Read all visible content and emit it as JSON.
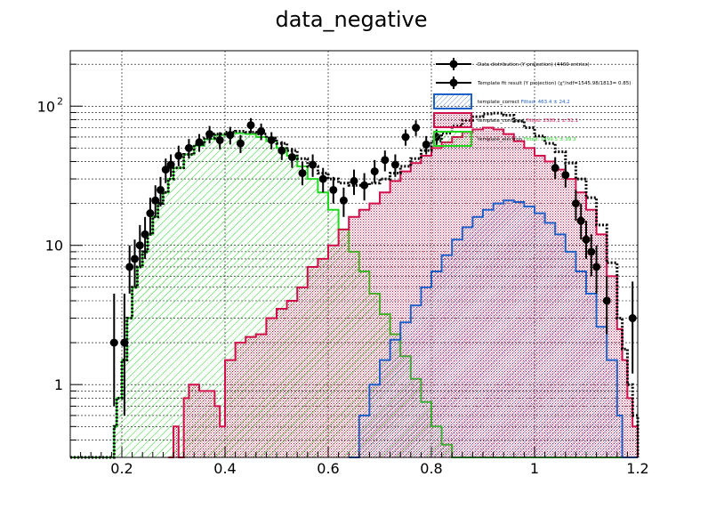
{
  "chart_data": {
    "type": "histogram",
    "title": "data_negative",
    "xlabel": "",
    "ylabel": "",
    "xlim": [
      0.1,
      1.2
    ],
    "ylim": [
      0.3,
      250
    ],
    "y_scale": "log",
    "grid": true,
    "legend_position": "top-right",
    "x_ticks": [
      "0.2",
      "0.4",
      "0.6",
      "0.8",
      "1",
      "1.2"
    ],
    "y_ticks": [
      {
        "value": 1,
        "label": "1"
      },
      {
        "value": 10,
        "label": "10"
      },
      {
        "value": 100,
        "label": "10",
        "exp": "2"
      }
    ],
    "bin_edges_range": [
      0.1,
      1.2
    ],
    "bin_width": 0.01,
    "legend": [
      {
        "label": "Data distribution (Y projection) (4469 entries)",
        "style": "marker",
        "color": "#000000"
      },
      {
        "label": "Template fit result (Y projection) (χ²/ndf=1545.98/1813= 0.85)",
        "style": "marker",
        "color": "#000000"
      },
      {
        "label": "template_correct",
        "fitted": "Fitted: 463.4 ± 24.2",
        "style": "hatch",
        "color": "#1f5fc8",
        "fitted_color": "#1f5fc8"
      },
      {
        "label": "template_confused",
        "fitted": "Fitted: 2505.1 ± 51.1",
        "style": "hatch",
        "color": "#d0104a",
        "fitted_color": "#d0104a"
      },
      {
        "label": "template_electron",
        "fitted": "Fitted: 1499.5 ± 39.3",
        "style": "hatch",
        "color": "#20d820",
        "fitted_color": "#20d820"
      }
    ],
    "series": [
      {
        "name": "template_electron",
        "color": "#20d820",
        "points": [
          [
            0.1,
            0.3
          ],
          [
            0.18,
            0.3
          ],
          [
            0.185,
            0.5
          ],
          [
            0.19,
            0.8
          ],
          [
            0.2,
            1.5
          ],
          [
            0.21,
            3
          ],
          [
            0.22,
            5
          ],
          [
            0.23,
            7
          ],
          [
            0.24,
            9
          ],
          [
            0.25,
            12
          ],
          [
            0.26,
            16
          ],
          [
            0.27,
            20
          ],
          [
            0.28,
            24
          ],
          [
            0.29,
            30
          ],
          [
            0.3,
            36
          ],
          [
            0.32,
            45
          ],
          [
            0.34,
            52
          ],
          [
            0.36,
            58
          ],
          [
            0.38,
            62
          ],
          [
            0.4,
            64
          ],
          [
            0.42,
            64
          ],
          [
            0.44,
            63
          ],
          [
            0.46,
            60
          ],
          [
            0.48,
            56
          ],
          [
            0.5,
            50
          ],
          [
            0.52,
            44
          ],
          [
            0.54,
            37
          ],
          [
            0.56,
            30
          ],
          [
            0.58,
            24
          ],
          [
            0.6,
            18
          ],
          [
            0.62,
            13
          ],
          [
            0.64,
            9
          ],
          [
            0.66,
            6.5
          ],
          [
            0.68,
            4.5
          ],
          [
            0.7,
            3.2
          ],
          [
            0.72,
            2.3
          ],
          [
            0.74,
            1.6
          ],
          [
            0.76,
            1.1
          ],
          [
            0.78,
            0.75
          ],
          [
            0.8,
            0.5
          ],
          [
            0.82,
            0.37
          ],
          [
            0.84,
            0.3
          ],
          [
            1.2,
            0.3
          ]
        ]
      },
      {
        "name": "template_confused",
        "color": "#d0104a",
        "points": [
          [
            0.29,
            0.3
          ],
          [
            0.3,
            0.5
          ],
          [
            0.31,
            0.3
          ],
          [
            0.32,
            0.8
          ],
          [
            0.33,
            1.0
          ],
          [
            0.35,
            0.9
          ],
          [
            0.37,
            0.9
          ],
          [
            0.38,
            0.7
          ],
          [
            0.39,
            0.5
          ],
          [
            0.4,
            1.5
          ],
          [
            0.42,
            2
          ],
          [
            0.44,
            2.2
          ],
          [
            0.46,
            2.3
          ],
          [
            0.48,
            3
          ],
          [
            0.5,
            3.5
          ],
          [
            0.52,
            4
          ],
          [
            0.54,
            5
          ],
          [
            0.56,
            7
          ],
          [
            0.58,
            8
          ],
          [
            0.6,
            10
          ],
          [
            0.62,
            13
          ],
          [
            0.64,
            16
          ],
          [
            0.66,
            18
          ],
          [
            0.68,
            20
          ],
          [
            0.7,
            24
          ],
          [
            0.72,
            29
          ],
          [
            0.74,
            34
          ],
          [
            0.76,
            39
          ],
          [
            0.78,
            44
          ],
          [
            0.8,
            50
          ],
          [
            0.82,
            55
          ],
          [
            0.84,
            60
          ],
          [
            0.86,
            65
          ],
          [
            0.88,
            68
          ],
          [
            0.9,
            70
          ],
          [
            0.92,
            68
          ],
          [
            0.94,
            63
          ],
          [
            0.96,
            56
          ],
          [
            0.98,
            50
          ],
          [
            1.0,
            44
          ],
          [
            1.02,
            40
          ],
          [
            1.04,
            35
          ],
          [
            1.06,
            30
          ],
          [
            1.08,
            24
          ],
          [
            1.1,
            18
          ],
          [
            1.12,
            12
          ],
          [
            1.14,
            6
          ],
          [
            1.16,
            2.5
          ],
          [
            1.17,
            1.5
          ],
          [
            1.18,
            0.8
          ],
          [
            1.19,
            0.5
          ],
          [
            1.2,
            0.3
          ]
        ]
      },
      {
        "name": "template_correct",
        "color": "#1f5fc8",
        "points": [
          [
            0.64,
            0.3
          ],
          [
            0.66,
            0.6
          ],
          [
            0.68,
            1.0
          ],
          [
            0.7,
            1.5
          ],
          [
            0.72,
            2.1
          ],
          [
            0.74,
            2.8
          ],
          [
            0.76,
            3.7
          ],
          [
            0.78,
            5
          ],
          [
            0.8,
            6.5
          ],
          [
            0.82,
            8.5
          ],
          [
            0.84,
            11
          ],
          [
            0.86,
            13.5
          ],
          [
            0.88,
            16
          ],
          [
            0.9,
            18
          ],
          [
            0.92,
            20
          ],
          [
            0.94,
            21
          ],
          [
            0.96,
            20.5
          ],
          [
            0.98,
            19
          ],
          [
            1.0,
            17
          ],
          [
            1.02,
            14.5
          ],
          [
            1.04,
            12
          ],
          [
            1.06,
            9
          ],
          [
            1.08,
            6.5
          ],
          [
            1.1,
            4.5
          ],
          [
            1.12,
            2.6
          ],
          [
            1.14,
            1.5
          ],
          [
            1.16,
            0.6
          ],
          [
            1.17,
            0.3
          ],
          [
            1.2,
            0.3
          ]
        ]
      },
      {
        "name": "Template fit result (Y projection)",
        "color": "#000000",
        "style": "dotted",
        "points": [
          [
            0.1,
            0.3
          ],
          [
            0.18,
            0.3
          ],
          [
            0.185,
            0.5
          ],
          [
            0.19,
            0.8
          ],
          [
            0.2,
            1.5
          ],
          [
            0.21,
            3
          ],
          [
            0.22,
            5
          ],
          [
            0.23,
            7
          ],
          [
            0.24,
            9
          ],
          [
            0.25,
            12
          ],
          [
            0.26,
            16
          ],
          [
            0.27,
            20
          ],
          [
            0.28,
            24
          ],
          [
            0.29,
            30
          ],
          [
            0.3,
            36
          ],
          [
            0.32,
            45
          ],
          [
            0.34,
            53
          ],
          [
            0.36,
            59
          ],
          [
            0.38,
            63
          ],
          [
            0.4,
            65
          ],
          [
            0.42,
            66
          ],
          [
            0.44,
            65
          ],
          [
            0.46,
            63
          ],
          [
            0.48,
            59
          ],
          [
            0.5,
            54
          ],
          [
            0.52,
            48
          ],
          [
            0.54,
            42
          ],
          [
            0.56,
            37
          ],
          [
            0.58,
            33
          ],
          [
            0.6,
            30
          ],
          [
            0.62,
            28
          ],
          [
            0.64,
            27
          ],
          [
            0.66,
            27
          ],
          [
            0.68,
            28
          ],
          [
            0.7,
            30
          ],
          [
            0.72,
            33
          ],
          [
            0.74,
            37
          ],
          [
            0.76,
            42
          ],
          [
            0.78,
            48
          ],
          [
            0.8,
            56
          ],
          [
            0.82,
            64
          ],
          [
            0.84,
            72
          ],
          [
            0.86,
            79
          ],
          [
            0.88,
            84
          ],
          [
            0.9,
            88
          ],
          [
            0.92,
            89
          ],
          [
            0.94,
            86
          ],
          [
            0.96,
            78
          ],
          [
            0.98,
            70
          ],
          [
            1.0,
            61
          ],
          [
            1.02,
            54
          ],
          [
            1.04,
            47
          ],
          [
            1.06,
            39
          ],
          [
            1.08,
            30
          ],
          [
            1.1,
            22
          ],
          [
            1.12,
            14
          ],
          [
            1.14,
            7.5
          ],
          [
            1.16,
            3
          ],
          [
            1.17,
            1.8
          ],
          [
            1.18,
            1.0
          ],
          [
            1.19,
            0.6
          ],
          [
            1.2,
            0.3
          ]
        ]
      }
    ],
    "data_points": [
      {
        "x": 0.185,
        "y": 2.0,
        "lo": 0.7,
        "hi": 4.5
      },
      {
        "x": 0.205,
        "y": 2.0,
        "lo": 0.6,
        "hi": 4.5
      },
      {
        "x": 0.215,
        "y": 7.0,
        "lo": 4.5,
        "hi": 10
      },
      {
        "x": 0.225,
        "y": 8.0,
        "lo": 5,
        "hi": 11
      },
      {
        "x": 0.235,
        "y": 10.0,
        "lo": 7,
        "hi": 14
      },
      {
        "x": 0.245,
        "y": 12.0,
        "lo": 8,
        "hi": 16
      },
      {
        "x": 0.255,
        "y": 17.0,
        "lo": 12,
        "hi": 22
      },
      {
        "x": 0.265,
        "y": 21.0,
        "lo": 16,
        "hi": 27
      },
      {
        "x": 0.275,
        "y": 25.0,
        "lo": 19,
        "hi": 31
      },
      {
        "x": 0.285,
        "y": 35.0,
        "lo": 28,
        "hi": 42
      },
      {
        "x": 0.295,
        "y": 38.0,
        "lo": 31,
        "hi": 45
      },
      {
        "x": 0.31,
        "y": 44.0,
        "lo": 37,
        "hi": 52
      },
      {
        "x": 0.33,
        "y": 50.0,
        "lo": 42,
        "hi": 58
      },
      {
        "x": 0.35,
        "y": 55.0,
        "lo": 47,
        "hi": 63
      },
      {
        "x": 0.37,
        "y": 63.0,
        "lo": 54,
        "hi": 72
      },
      {
        "x": 0.39,
        "y": 57.0,
        "lo": 49,
        "hi": 65
      },
      {
        "x": 0.41,
        "y": 62.0,
        "lo": 53,
        "hi": 71
      },
      {
        "x": 0.43,
        "y": 54.0,
        "lo": 46,
        "hi": 62
      },
      {
        "x": 0.45,
        "y": 73.0,
        "lo": 64,
        "hi": 82
      },
      {
        "x": 0.47,
        "y": 66.0,
        "lo": 57,
        "hi": 75
      },
      {
        "x": 0.49,
        "y": 57.0,
        "lo": 49,
        "hi": 65
      },
      {
        "x": 0.51,
        "y": 48.0,
        "lo": 41,
        "hi": 56
      },
      {
        "x": 0.53,
        "y": 43.0,
        "lo": 36,
        "hi": 50
      },
      {
        "x": 0.55,
        "y": 33.0,
        "lo": 27,
        "hi": 40
      },
      {
        "x": 0.57,
        "y": 38.0,
        "lo": 31,
        "hi": 45
      },
      {
        "x": 0.59,
        "y": 30.0,
        "lo": 24,
        "hi": 36
      },
      {
        "x": 0.61,
        "y": 25.0,
        "lo": 20,
        "hi": 31
      },
      {
        "x": 0.63,
        "y": 21.0,
        "lo": 16,
        "hi": 26
      },
      {
        "x": 0.65,
        "y": 29.0,
        "lo": 23,
        "hi": 35
      },
      {
        "x": 0.67,
        "y": 27.0,
        "lo": 21,
        "hi": 33
      },
      {
        "x": 0.69,
        "y": 34.0,
        "lo": 28,
        "hi": 41
      },
      {
        "x": 0.71,
        "y": 41.0,
        "lo": 34,
        "hi": 48
      },
      {
        "x": 0.73,
        "y": 38.0,
        "lo": 31,
        "hi": 45
      },
      {
        "x": 0.75,
        "y": 60.0,
        "lo": 52,
        "hi": 68
      },
      {
        "x": 0.77,
        "y": 70.0,
        "lo": 61,
        "hi": 79
      },
      {
        "x": 0.79,
        "y": 53.0,
        "lo": 45,
        "hi": 61
      },
      {
        "x": 0.81,
        "y": 60.0,
        "lo": 52,
        "hi": 68
      },
      {
        "x": 1.04,
        "y": 36.0,
        "lo": 30,
        "hi": 43
      },
      {
        "x": 1.06,
        "y": 32.0,
        "lo": 26,
        "hi": 38
      },
      {
        "x": 1.08,
        "y": 20.0,
        "lo": 15,
        "hi": 25
      },
      {
        "x": 1.09,
        "y": 15.0,
        "lo": 11,
        "hi": 20
      },
      {
        "x": 1.1,
        "y": 11.0,
        "lo": 8,
        "hi": 15
      },
      {
        "x": 1.11,
        "y": 9.0,
        "lo": 6,
        "hi": 12
      },
      {
        "x": 1.12,
        "y": 7.0,
        "lo": 4.5,
        "hi": 10
      },
      {
        "x": 1.14,
        "y": 4.0,
        "lo": 2.3,
        "hi": 6
      },
      {
        "x": 1.19,
        "y": 3.0,
        "lo": 1.2,
        "hi": 5.5
      }
    ]
  }
}
